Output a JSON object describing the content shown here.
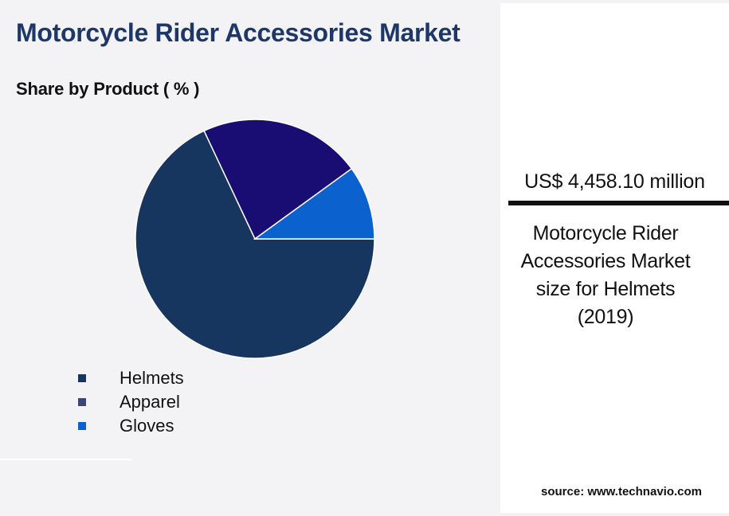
{
  "chart_data": {
    "type": "pie",
    "title": "Motorcycle Rider Accessories Market",
    "subtitle": "Share by Product ( % )",
    "slices": [
      {
        "label": "Helmets",
        "value": 68,
        "color": "#16365f"
      },
      {
        "label": "Apparel",
        "value": 22,
        "color": "#190d73"
      },
      {
        "label": "Gloves",
        "value": 10,
        "color": "#0b62cf"
      }
    ],
    "legend": {
      "placement": "bottom-left",
      "items": [
        {
          "label": "Helmets",
          "color": "#16365f"
        },
        {
          "label": "Apparel",
          "color": "#3a4579"
        },
        {
          "label": "Gloves",
          "color": "#0b62cf"
        }
      ]
    }
  },
  "highlight": {
    "value": "US$ 4,458.10 million",
    "caption_lines": [
      "Motorcycle Rider",
      "Accessories Market",
      "size for Helmets",
      "(2019)"
    ]
  },
  "source": "source: www.technavio.com"
}
